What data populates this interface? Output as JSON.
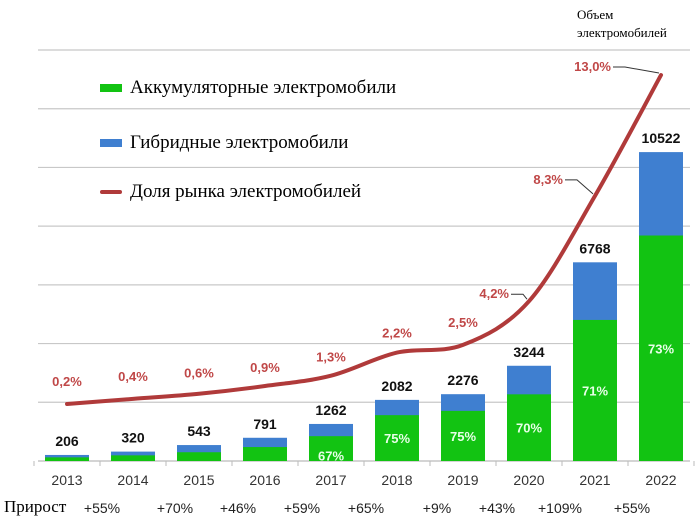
{
  "chart_data": {
    "type": "bar",
    "title": "",
    "corner_label": [
      "Объем",
      "электромобилей"
    ],
    "categories": [
      "2013",
      "2014",
      "2015",
      "2016",
      "2017",
      "2018",
      "2019",
      "2020",
      "2021",
      "2022"
    ],
    "totals": [
      206,
      320,
      543,
      791,
      1262,
      2082,
      2276,
      3244,
      6768,
      10522
    ],
    "bev_share_percent": [
      60,
      60,
      55,
      60,
      67,
      75,
      75,
      70,
      71,
      73
    ],
    "bev_share_labels": [
      "",
      "",
      "",
      "",
      "67%",
      "75%",
      "75%",
      "70%",
      "71%",
      "73%"
    ],
    "series": [
      {
        "name": "Аккумуляторные электромобили",
        "color": "#12c312"
      },
      {
        "name": "Гибридные электромобили",
        "color": "#3f7fd0"
      },
      {
        "name": "Доля рынка электромобилей",
        "color": "#b03a3a",
        "values": [
          0.2,
          0.4,
          0.6,
          0.9,
          1.3,
          2.2,
          2.5,
          4.2,
          8.3,
          13.0
        ],
        "labels": [
          "0,2%",
          "0,4%",
          "0,6%",
          "0,9%",
          "1,3%",
          "2,2%",
          "2,5%",
          "4,2%",
          "8,3%",
          "13,0%"
        ]
      }
    ],
    "growth_title": "Прирост",
    "growth": [
      "+55%",
      "+70%",
      "+46%",
      "+59%",
      "+65%",
      "+9%",
      "+43%",
      "+109%",
      "+55%"
    ],
    "ylim": [
      0,
      14000
    ],
    "ytick_step": 2000,
    "grid": true,
    "legend_position": "top-left"
  }
}
